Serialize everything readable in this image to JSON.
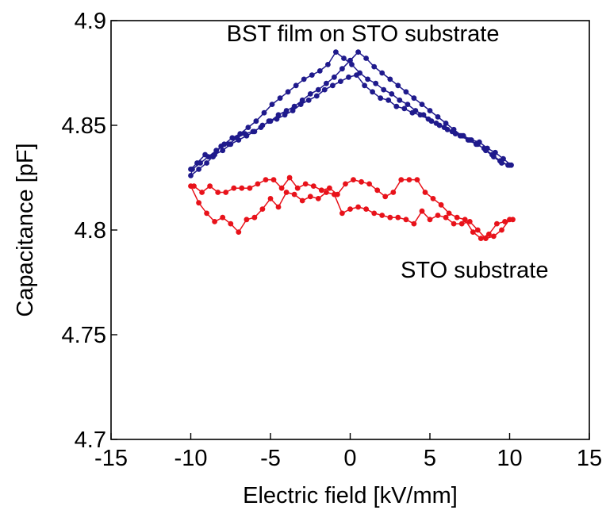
{
  "chart_data": {
    "type": "line",
    "title": "",
    "xlabel": "Electric field [kV/mm]",
    "ylabel": "Capacitance [pF]",
    "xlim": [
      -15,
      15
    ],
    "ylim": [
      4.7,
      4.9
    ],
    "xticks": [
      -15,
      -10,
      -5,
      0,
      5,
      10,
      15
    ],
    "yticks": [
      4.7,
      4.75,
      4.8,
      4.85,
      4.9
    ],
    "xtick_labels": [
      "-15",
      "-10",
      "-5",
      "0",
      "5",
      "10",
      "15"
    ],
    "ytick_labels": [
      "4.7",
      "4.75",
      "4.8",
      "4.85",
      "4.9"
    ],
    "grid": false,
    "legend": "none",
    "annotations": [
      {
        "text": "BST film on STO substrate",
        "x": 0.8,
        "y": 4.894
      },
      {
        "text": "STO substrate",
        "x": 7.8,
        "y": 4.781
      }
    ],
    "series": [
      {
        "color": "#1f1a8c",
        "marker": "circle",
        "x": [
          -10.0,
          -9.6,
          -9.1,
          -8.6,
          -8.1,
          -7.6,
          -7.1,
          -6.6,
          -6.1,
          -5.6,
          -5.1,
          -4.6,
          -4.1,
          -3.6,
          -3.1,
          -2.6,
          -2.1,
          -1.6,
          -1.1,
          -0.6,
          -0.1,
          0.4,
          0.9,
          1.4,
          1.9,
          2.4,
          2.9,
          3.4,
          3.9,
          4.4,
          4.9,
          5.4,
          5.9,
          6.4,
          6.9,
          7.4,
          7.9,
          8.4,
          8.9,
          9.4,
          9.9,
          10.1,
          9.6,
          9.1,
          8.6,
          8.1,
          7.6,
          7.1,
          6.6,
          6.1,
          5.6,
          5.1,
          4.6,
          4.1,
          3.6,
          3.1,
          2.6,
          2.1,
          1.6,
          1.1,
          0.6,
          0.1,
          -0.4,
          -0.9,
          -1.4,
          -1.9,
          -2.4,
          -2.9,
          -3.4,
          -3.9,
          -4.4,
          -4.9,
          -5.4,
          -5.9,
          -6.4,
          -6.9,
          -7.4,
          -7.9,
          -8.4,
          -8.9,
          -9.4,
          -9.9,
          -10.0,
          -9.5,
          -9.0,
          -8.5,
          -8.0,
          -7.5,
          -7.0,
          -6.5,
          -6.0,
          -5.5,
          -5.0,
          -4.5,
          -4.0,
          -3.5,
          -3.0,
          -2.5,
          -2.0,
          -1.5,
          -1.0,
          -0.5,
          0.0,
          0.5,
          1.0,
          1.5,
          2.0,
          2.5,
          3.0,
          3.5,
          4.0,
          4.5,
          5.0,
          5.5,
          6.0,
          6.5,
          7.0,
          7.5,
          8.0,
          8.5,
          9.0,
          9.5,
          10.0
        ],
        "y": [
          4.829,
          4.832,
          4.836,
          4.835,
          4.84,
          4.841,
          4.844,
          4.846,
          4.847,
          4.849,
          4.852,
          4.853,
          4.855,
          4.857,
          4.86,
          4.862,
          4.864,
          4.867,
          4.869,
          4.871,
          4.873,
          4.874,
          4.869,
          4.866,
          4.863,
          4.862,
          4.859,
          4.858,
          4.856,
          4.855,
          4.853,
          4.851,
          4.849,
          4.847,
          4.845,
          4.843,
          4.841,
          4.839,
          4.836,
          4.833,
          4.831,
          4.831,
          4.834,
          4.837,
          4.839,
          4.842,
          4.843,
          4.845,
          4.846,
          4.848,
          4.85,
          4.852,
          4.855,
          4.857,
          4.86,
          4.862,
          4.865,
          4.867,
          4.87,
          4.872,
          4.875,
          4.879,
          4.882,
          4.885,
          4.879,
          4.876,
          4.874,
          4.872,
          4.869,
          4.866,
          4.863,
          4.86,
          4.856,
          4.852,
          4.849,
          4.846,
          4.844,
          4.841,
          4.838,
          4.835,
          4.832,
          4.829,
          4.826,
          4.829,
          4.832,
          4.836,
          4.838,
          4.841,
          4.843,
          4.845,
          4.847,
          4.85,
          4.852,
          4.855,
          4.857,
          4.859,
          4.862,
          4.865,
          4.867,
          4.87,
          4.873,
          4.877,
          4.881,
          4.885,
          4.882,
          4.878,
          4.875,
          4.872,
          4.869,
          4.866,
          4.863,
          4.86,
          4.857,
          4.854,
          4.851,
          4.848,
          4.845,
          4.843,
          4.841,
          4.838,
          4.835,
          4.832,
          4.831
        ]
      },
      {
        "color": "#e8121a",
        "marker": "circle",
        "x": [
          -10.0,
          -9.5,
          -9.0,
          -8.5,
          -8.0,
          -7.5,
          -7.0,
          -6.5,
          -6.0,
          -5.5,
          -5.0,
          -4.5,
          -4.0,
          -3.5,
          -3.0,
          -2.5,
          -2.0,
          -1.5,
          -1.0,
          -0.5,
          0.0,
          0.5,
          1.0,
          1.5,
          2.0,
          2.5,
          3.0,
          3.5,
          4.0,
          4.5,
          5.0,
          5.5,
          6.0,
          6.5,
          7.0,
          7.5,
          8.0,
          8.5,
          9.0,
          9.5,
          10.0,
          10.2,
          9.7,
          9.2,
          8.7,
          8.2,
          7.7,
          7.2,
          6.7,
          6.2,
          5.7,
          5.2,
          4.7,
          4.2,
          3.7,
          3.2,
          2.7,
          2.2,
          1.7,
          1.2,
          0.7,
          0.2,
          -0.3,
          -0.8,
          -1.3,
          -1.8,
          -2.3,
          -2.8,
          -3.3,
          -3.8,
          -4.3,
          -4.8,
          -5.3,
          -5.8,
          -6.3,
          -6.8,
          -7.3,
          -7.8,
          -8.3,
          -8.8,
          -9.3,
          -9.8
        ],
        "y": [
          4.821,
          4.813,
          4.808,
          4.804,
          4.806,
          4.803,
          4.799,
          4.805,
          4.806,
          4.81,
          4.815,
          4.811,
          4.818,
          4.817,
          4.814,
          4.816,
          4.815,
          4.818,
          4.817,
          4.808,
          4.81,
          4.811,
          4.81,
          4.808,
          4.807,
          4.806,
          4.806,
          4.805,
          4.803,
          4.809,
          4.805,
          4.807,
          4.806,
          4.803,
          4.803,
          4.804,
          4.8,
          4.796,
          4.797,
          4.8,
          4.805,
          4.805,
          4.804,
          4.803,
          4.798,
          4.796,
          4.799,
          4.805,
          4.806,
          4.808,
          4.812,
          4.815,
          4.818,
          4.824,
          4.824,
          4.824,
          4.818,
          4.816,
          4.819,
          4.822,
          4.823,
          4.824,
          4.822,
          4.817,
          4.82,
          4.819,
          4.821,
          4.822,
          4.82,
          4.825,
          4.82,
          4.824,
          4.824,
          4.822,
          4.82,
          4.82,
          4.82,
          4.818,
          4.818,
          4.821,
          4.818,
          4.821
        ]
      }
    ]
  }
}
